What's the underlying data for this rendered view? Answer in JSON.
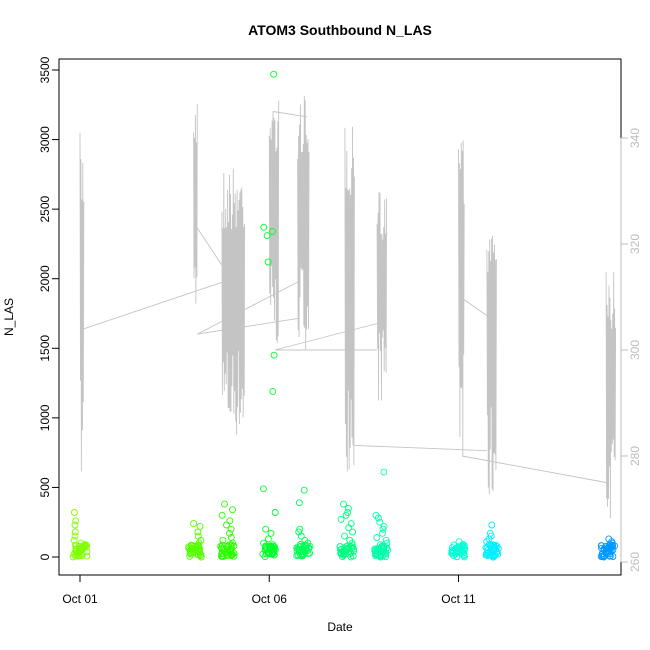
{
  "chart_data": {
    "type": "scatter",
    "title": "ATOM3 Southbound N_LAS",
    "xlabel": "Date",
    "ylabel": "N_LAS",
    "x_ticks": [
      "Oct 01",
      "Oct 06",
      "Oct 11"
    ],
    "y_ticks": [
      0,
      500,
      1000,
      1500,
      2000,
      2500,
      3000,
      3500
    ],
    "y_right_ticks": [
      260,
      280,
      300,
      320,
      340
    ],
    "ylim": [
      0,
      3500
    ],
    "y_right_lim": [
      260,
      350
    ],
    "grid": false,
    "legend": "none",
    "series": [
      {
        "type": "scatter",
        "groups": [
          {
            "day": 0.0,
            "color": "#80ff00",
            "points": [
              320,
              260,
              230,
              180,
              150,
              120,
              100,
              80,
              60,
              40,
              20,
              10
            ]
          },
          {
            "day": 3.05,
            "color": "#55ff00",
            "points": [
              240,
              220,
              180,
              150,
              120,
              100,
              80,
              60,
              40,
              20,
              10
            ]
          },
          {
            "day": 3.9,
            "color": "#2bff00",
            "points": [
              380,
              340,
              300,
              260,
              230,
              200,
              170,
              140,
              120,
              100,
              80,
              60,
              40,
              20,
              10
            ]
          },
          {
            "day": 5.0,
            "color": "#00ff2b",
            "points": [
              3470,
              2370,
              2340,
              2310,
              2120,
              1450,
              1190,
              490,
              320,
              200,
              170,
              130,
              100,
              70,
              40,
              20
            ]
          },
          {
            "day": 5.9,
            "color": "#00ff55",
            "points": [
              480,
              390,
              200,
              180,
              150,
              120,
              100,
              80,
              60,
              40,
              20
            ]
          },
          {
            "day": 7.05,
            "color": "#00ff80",
            "points": [
              380,
              350,
              320,
              300,
              270,
              240,
              210,
              180,
              150,
              120,
              100,
              80,
              60,
              40,
              20
            ]
          },
          {
            "day": 7.95,
            "color": "#00ffaa",
            "points": [
              610,
              300,
              280,
              250,
              220,
              200,
              170,
              140,
              120,
              100,
              80,
              60,
              40,
              20
            ]
          },
          {
            "day": 10.0,
            "color": "#00ffd5",
            "points": [
              110,
              90,
              80,
              70,
              60,
              50,
              40,
              30,
              20,
              10
            ]
          },
          {
            "day": 10.9,
            "color": "#00f0ff",
            "points": [
              230,
              170,
              150,
              130,
              110,
              90,
              70,
              50,
              30,
              20,
              10
            ]
          },
          {
            "day": 13.95,
            "color": "#0099ff",
            "points": [
              130,
              110,
              100,
              90,
              80,
              70,
              60,
              50,
              40,
              30,
              20,
              10
            ]
          }
        ]
      },
      {
        "type": "line",
        "axis": "right",
        "color": "#c4c4c4",
        "bursts": [
          {
            "x0": 0.0,
            "x1": 0.1,
            "min": 272,
            "max": 341
          },
          {
            "x0": 3.0,
            "x1": 3.1,
            "min": 303,
            "max": 347
          },
          {
            "x0": 3.75,
            "x1": 4.35,
            "min": 283,
            "max": 335
          },
          {
            "x0": 5.0,
            "x1": 5.25,
            "min": 300,
            "max": 348
          },
          {
            "x0": 5.75,
            "x1": 6.05,
            "min": 300,
            "max": 348
          },
          {
            "x0": 7.0,
            "x1": 7.25,
            "min": 277,
            "max": 346
          },
          {
            "x0": 7.85,
            "x1": 8.1,
            "min": 290,
            "max": 331
          },
          {
            "x0": 10.0,
            "x1": 10.15,
            "min": 275,
            "max": 345
          },
          {
            "x0": 10.75,
            "x1": 11.0,
            "min": 270,
            "max": 328
          },
          {
            "x0": 13.9,
            "x1": 14.15,
            "min": 267,
            "max": 315
          }
        ],
        "gaps": [
          [
            0.1,
            304,
            3.85,
            313
          ],
          [
            3.1,
            323,
            3.75,
            316
          ],
          [
            3.1,
            303,
            5.8,
            306
          ],
          [
            3.1,
            303,
            5.8,
            313
          ],
          [
            5.1,
            345,
            6.0,
            344
          ],
          [
            5.15,
            300,
            7.85,
            300
          ],
          [
            5.15,
            300,
            7.85,
            305
          ],
          [
            7.25,
            282,
            10.75,
            281
          ],
          [
            10.05,
            310,
            10.85,
            306
          ],
          [
            10.1,
            280,
            13.9,
            275
          ]
        ]
      }
    ]
  }
}
